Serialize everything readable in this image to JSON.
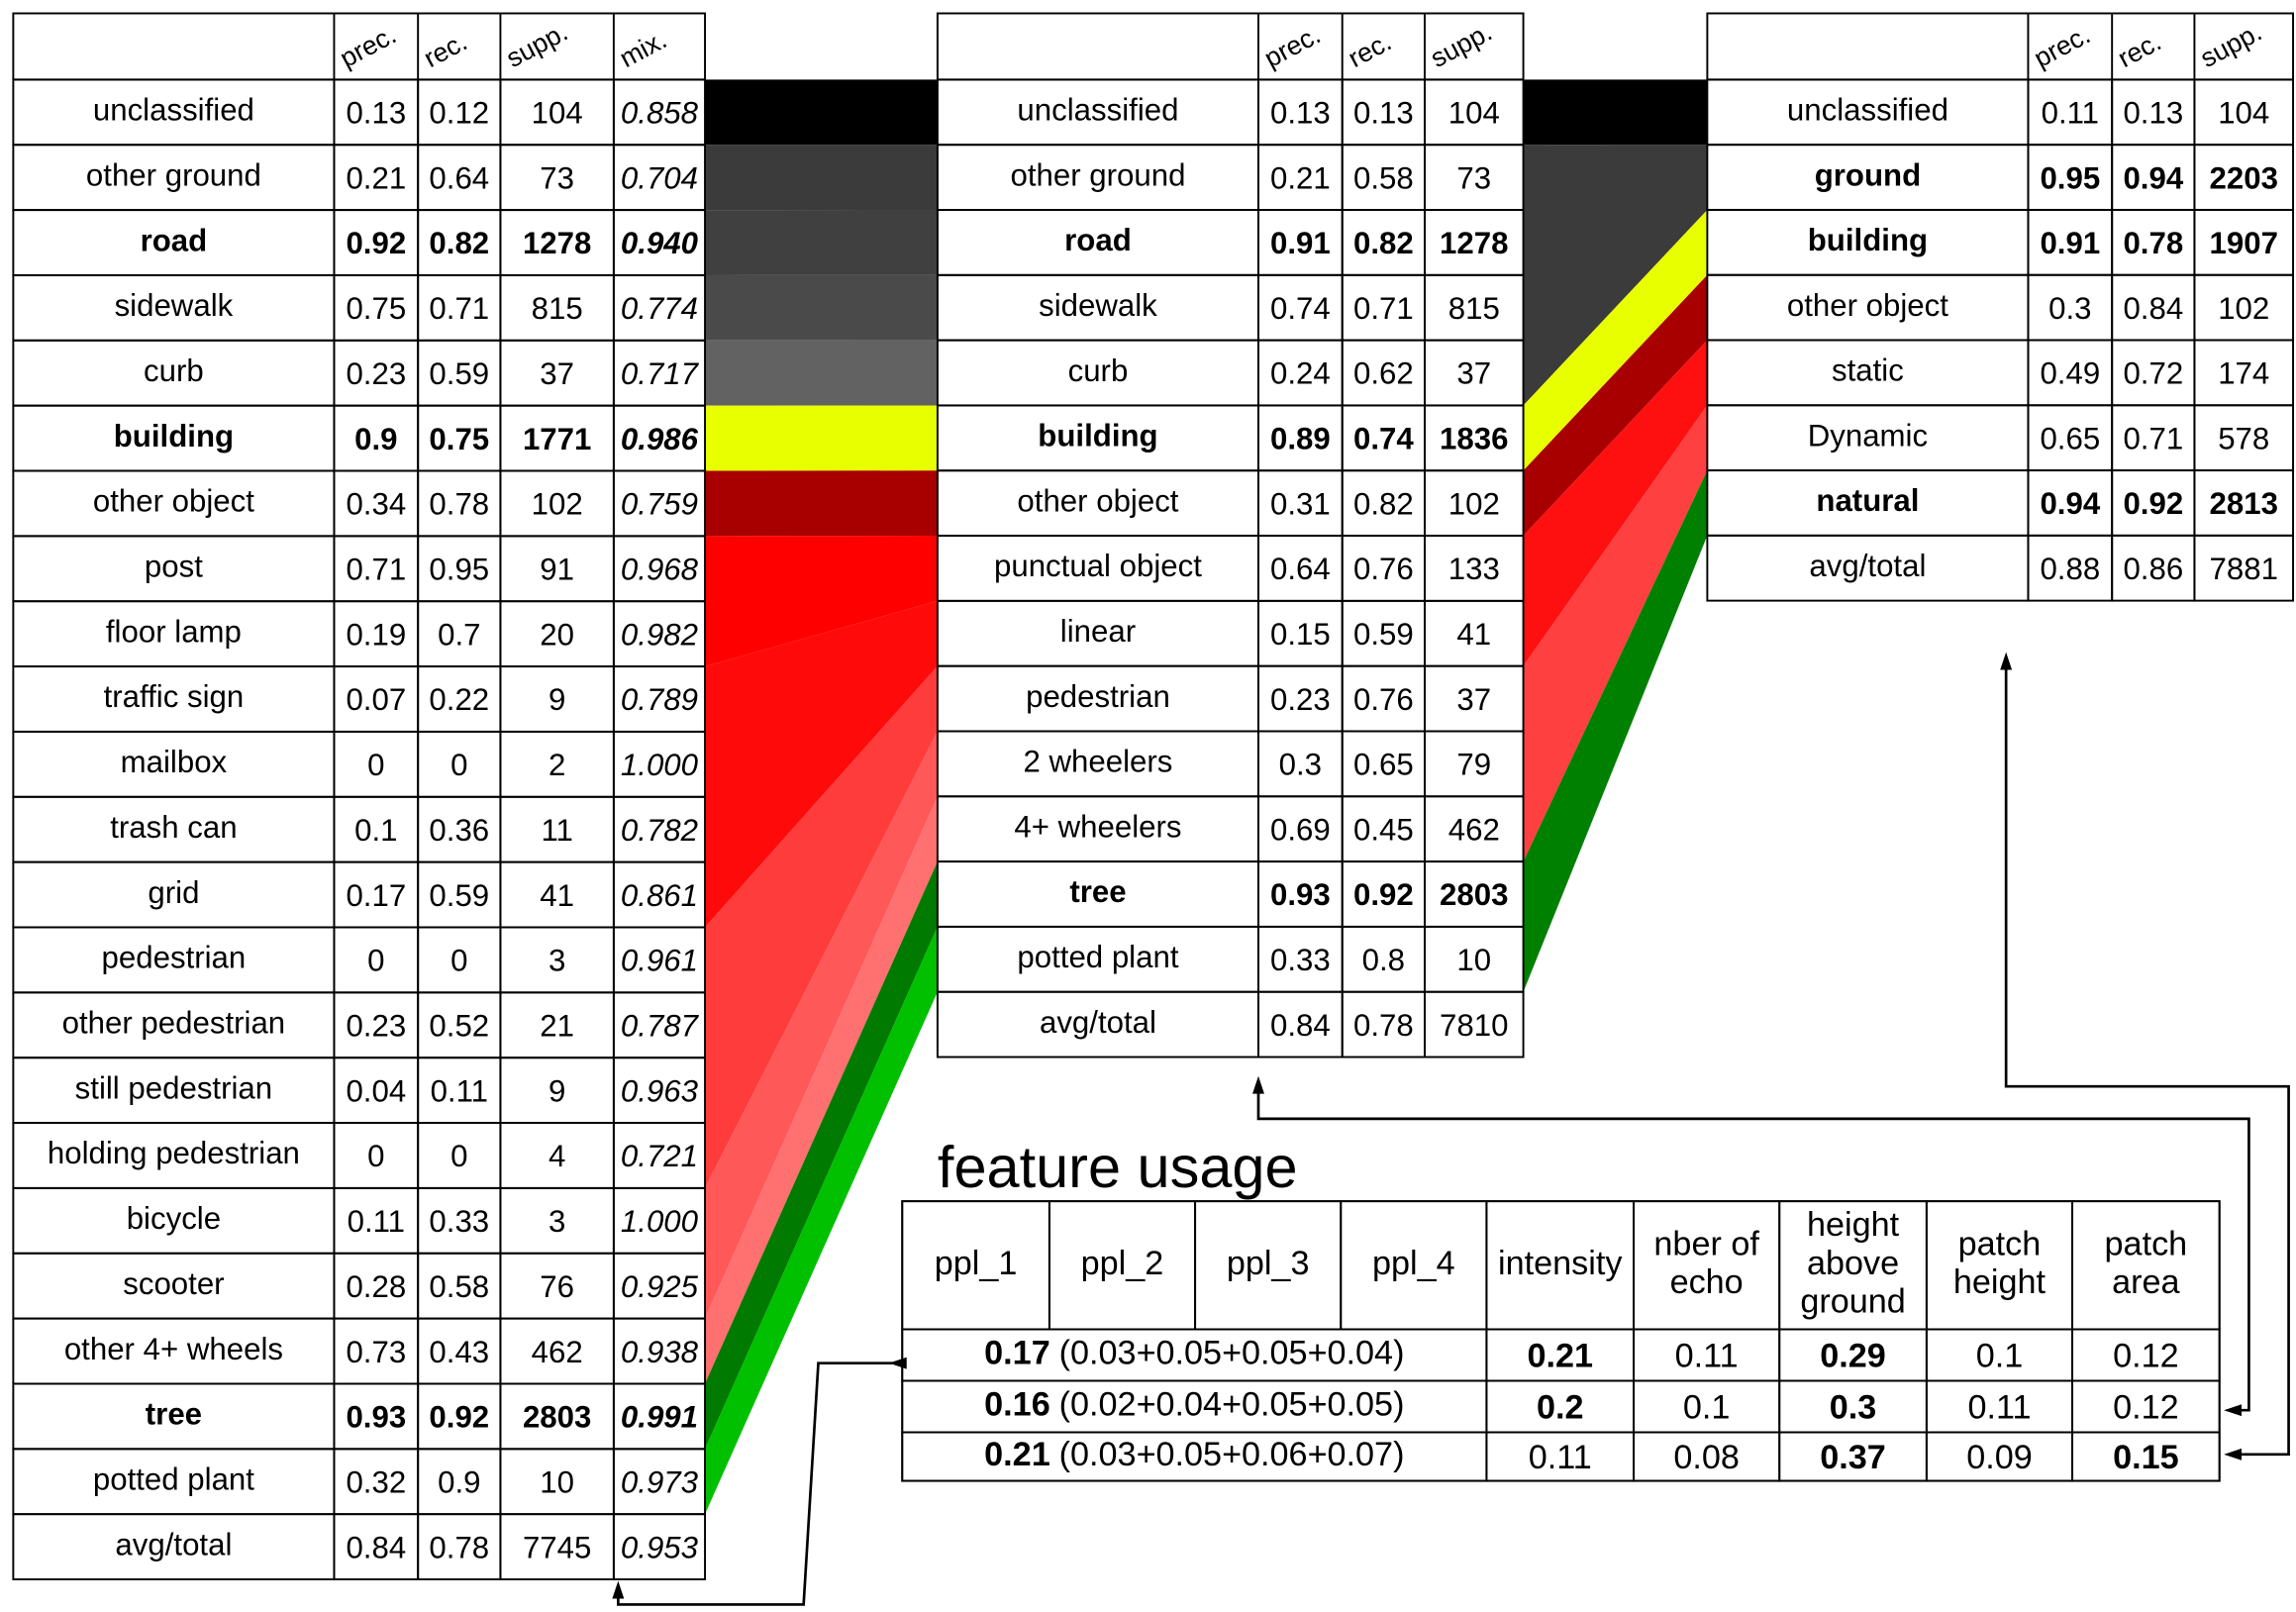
{
  "tables": [
    {
      "columns": [
        "prec.",
        "rec.",
        "supp.",
        "mix."
      ],
      "rows": [
        {
          "cells": [
            "unclassified",
            "0.13",
            "0.12",
            "104",
            "0.858"
          ],
          "bold": false
        },
        {
          "cells": [
            "other ground",
            "0.21",
            "0.64",
            "73",
            "0.704"
          ],
          "bold": false
        },
        {
          "cells": [
            "road",
            "0.92",
            "0.82",
            "1278",
            "0.940"
          ],
          "bold": true
        },
        {
          "cells": [
            "sidewalk",
            "0.75",
            "0.71",
            "815",
            "0.774"
          ],
          "bold": false
        },
        {
          "cells": [
            "curb",
            "0.23",
            "0.59",
            "37",
            "0.717"
          ],
          "bold": false
        },
        {
          "cells": [
            "building",
            "0.9",
            "0.75",
            "1771",
            "0.986"
          ],
          "bold": true
        },
        {
          "cells": [
            "other object",
            "0.34",
            "0.78",
            "102",
            "0.759"
          ],
          "bold": false
        },
        {
          "cells": [
            "post",
            "0.71",
            "0.95",
            "91",
            "0.968"
          ],
          "bold": false
        },
        {
          "cells": [
            "floor lamp",
            "0.19",
            "0.7",
            "20",
            "0.982"
          ],
          "bold": false
        },
        {
          "cells": [
            "traffic sign",
            "0.07",
            "0.22",
            "9",
            "0.789"
          ],
          "bold": false
        },
        {
          "cells": [
            "mailbox",
            "0",
            "0",
            "2",
            "1.000"
          ],
          "bold": false
        },
        {
          "cells": [
            "trash can",
            "0.1",
            "0.36",
            "11",
            "0.782"
          ],
          "bold": false
        },
        {
          "cells": [
            "grid",
            "0.17",
            "0.59",
            "41",
            "0.861"
          ],
          "bold": false
        },
        {
          "cells": [
            "pedestrian",
            "0",
            "0",
            "3",
            "0.961"
          ],
          "bold": false
        },
        {
          "cells": [
            "other pedestrian",
            "0.23",
            "0.52",
            "21",
            "0.787"
          ],
          "bold": false
        },
        {
          "cells": [
            "still pedestrian",
            "0.04",
            "0.11",
            "9",
            "0.963"
          ],
          "bold": false
        },
        {
          "cells": [
            "holding pedestrian",
            "0",
            "0",
            "4",
            "0.721"
          ],
          "bold": false
        },
        {
          "cells": [
            "bicycle",
            "0.11",
            "0.33",
            "3",
            "1.000"
          ],
          "bold": false
        },
        {
          "cells": [
            "scooter",
            "0.28",
            "0.58",
            "76",
            "0.925"
          ],
          "bold": false
        },
        {
          "cells": [
            "other 4+ wheels",
            "0.73",
            "0.43",
            "462",
            "0.938"
          ],
          "bold": false
        },
        {
          "cells": [
            "tree",
            "0.93",
            "0.92",
            "2803",
            "0.991"
          ],
          "bold": true
        },
        {
          "cells": [
            "potted plant",
            "0.32",
            "0.9",
            "10",
            "0.973"
          ],
          "bold": false
        },
        {
          "cells": [
            "avg/total",
            "0.84",
            "0.78",
            "7745",
            "0.953"
          ],
          "bold": false
        }
      ]
    },
    {
      "columns": [
        "prec.",
        "rec.",
        "supp."
      ],
      "rows": [
        {
          "cells": [
            "unclassified",
            "0.13",
            "0.13",
            "104"
          ],
          "bold": false
        },
        {
          "cells": [
            "other ground",
            "0.21",
            "0.58",
            "73"
          ],
          "bold": false
        },
        {
          "cells": [
            "road",
            "0.91",
            "0.82",
            "1278"
          ],
          "bold": true
        },
        {
          "cells": [
            "sidewalk",
            "0.74",
            "0.71",
            "815"
          ],
          "bold": false
        },
        {
          "cells": [
            "curb",
            "0.24",
            "0.62",
            "37"
          ],
          "bold": false
        },
        {
          "cells": [
            "building",
            "0.89",
            "0.74",
            "1836"
          ],
          "bold": true
        },
        {
          "cells": [
            "other object",
            "0.31",
            "0.82",
            "102"
          ],
          "bold": false
        },
        {
          "cells": [
            "punctual object",
            "0.64",
            "0.76",
            "133"
          ],
          "bold": false
        },
        {
          "cells": [
            "linear",
            "0.15",
            "0.59",
            "41"
          ],
          "bold": false
        },
        {
          "cells": [
            "pedestrian",
            "0.23",
            "0.76",
            "37"
          ],
          "bold": false
        },
        {
          "cells": [
            "2 wheelers",
            "0.3",
            "0.65",
            "79"
          ],
          "bold": false
        },
        {
          "cells": [
            "4+ wheelers",
            "0.69",
            "0.45",
            "462"
          ],
          "bold": false
        },
        {
          "cells": [
            "tree",
            "0.93",
            "0.92",
            "2803"
          ],
          "bold": true
        },
        {
          "cells": [
            "potted plant",
            "0.33",
            "0.8",
            "10"
          ],
          "bold": false
        },
        {
          "cells": [
            "avg/total",
            "0.84",
            "0.78",
            "7810"
          ],
          "bold": false
        }
      ]
    },
    {
      "columns": [
        "prec.",
        "rec.",
        "supp."
      ],
      "rows": [
        {
          "cells": [
            "unclassified",
            "0.11",
            "0.13",
            "104"
          ],
          "bold": false
        },
        {
          "cells": [
            "ground",
            "0.95",
            "0.94",
            "2203"
          ],
          "bold": true
        },
        {
          "cells": [
            "building",
            "0.91",
            "0.78",
            "1907"
          ],
          "bold": true
        },
        {
          "cells": [
            "other object",
            "0.3",
            "0.84",
            "102"
          ],
          "bold": false
        },
        {
          "cells": [
            "static",
            "0.49",
            "0.72",
            "174"
          ],
          "bold": false
        },
        {
          "cells": [
            "Dynamic",
            "0.65",
            "0.71",
            "578"
          ],
          "bold": false
        },
        {
          "cells": [
            "natural",
            "0.94",
            "0.92",
            "2813"
          ],
          "bold": true
        },
        {
          "cells": [
            "avg/total",
            "0.88",
            "0.86",
            "7881"
          ],
          "bold": false
        }
      ]
    }
  ],
  "feature_usage": {
    "title": "feature usage",
    "header": [
      [
        "ppl_1"
      ],
      [
        "ppl_2"
      ],
      [
        "ppl_3"
      ],
      [
        "ppl_4"
      ],
      [
        "intensity"
      ],
      [
        "nber of",
        "echo"
      ],
      [
        "height",
        "above",
        "ground"
      ],
      [
        "patch",
        "height"
      ],
      [
        "patch",
        "area"
      ]
    ],
    "rows": [
      {
        "ppl": {
          "main": "0.17",
          "detail": "(0.03+0.05+0.05+0.04)"
        },
        "cells": [
          {
            "text": "0.21",
            "bold": true
          },
          {
            "text": "0.11",
            "bold": false
          },
          {
            "text": "0.29",
            "bold": true
          },
          {
            "text": "0.1",
            "bold": false
          },
          {
            "text": "0.12",
            "bold": false
          }
        ]
      },
      {
        "ppl": {
          "main": "0.16",
          "detail": "(0.02+0.04+0.05+0.05)"
        },
        "cells": [
          {
            "text": "0.2",
            "bold": true
          },
          {
            "text": "0.1",
            "bold": false
          },
          {
            "text": "0.3",
            "bold": true
          },
          {
            "text": "0.11",
            "bold": false
          },
          {
            "text": "0.12",
            "bold": false
          }
        ]
      },
      {
        "ppl": {
          "main": "0.21",
          "detail": "(0.03+0.05+0.06+0.07)"
        },
        "cells": [
          {
            "text": "0.11",
            "bold": false
          },
          {
            "text": "0.08",
            "bold": false
          },
          {
            "text": "0.37",
            "bold": true
          },
          {
            "text": "0.09",
            "bold": false
          },
          {
            "text": "0.15",
            "bold": true
          }
        ]
      }
    ]
  }
}
